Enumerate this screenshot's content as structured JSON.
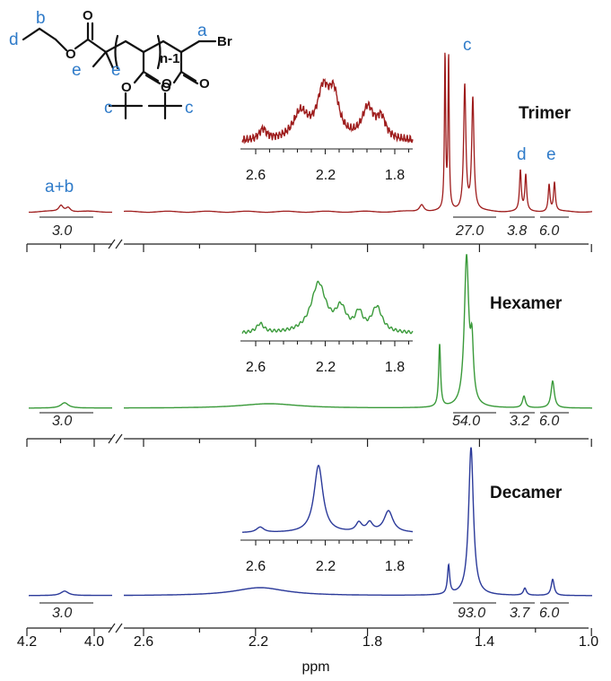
{
  "structure": {
    "labels": [
      {
        "text": "d"
      },
      {
        "text": "b"
      },
      {
        "text": "e"
      },
      {
        "text": "e"
      },
      {
        "text": "a"
      },
      {
        "text": "c"
      },
      {
        "text": "c"
      }
    ],
    "atom_O": "O",
    "atom_Br": "Br",
    "subscript": "n-1"
  },
  "chart_data": {
    "type": "line",
    "xlabel": "ppm",
    "x_ticks": [
      "4.2",
      "4.0",
      "2.6",
      "2.2",
      "1.8",
      "1.4",
      "1.0"
    ],
    "inset_ticks": [
      "2.6",
      "2.2",
      "1.8"
    ],
    "colors": {
      "trimer": "#9e1c1c",
      "hexamer": "#3a9a3a",
      "decamer": "#2b3a9a"
    },
    "series": [
      {
        "name": "Trimer",
        "peaks": [
          {
            "ppm": 4.1,
            "label": "a+b"
          },
          {
            "ppm": 1.46,
            "label": "c"
          },
          {
            "ppm": 1.25,
            "label": "d"
          },
          {
            "ppm": 1.14,
            "label": "e"
          }
        ],
        "integrals": [
          "3.0",
          "27.0",
          "3.8",
          "6.0"
        ]
      },
      {
        "name": "Hexamer",
        "integrals": [
          "3.0",
          "54.0",
          "3.2",
          "6.0"
        ]
      },
      {
        "name": "Decamer",
        "integrals": [
          "3.0",
          "93.0",
          "3.7",
          "6.0"
        ]
      }
    ]
  }
}
